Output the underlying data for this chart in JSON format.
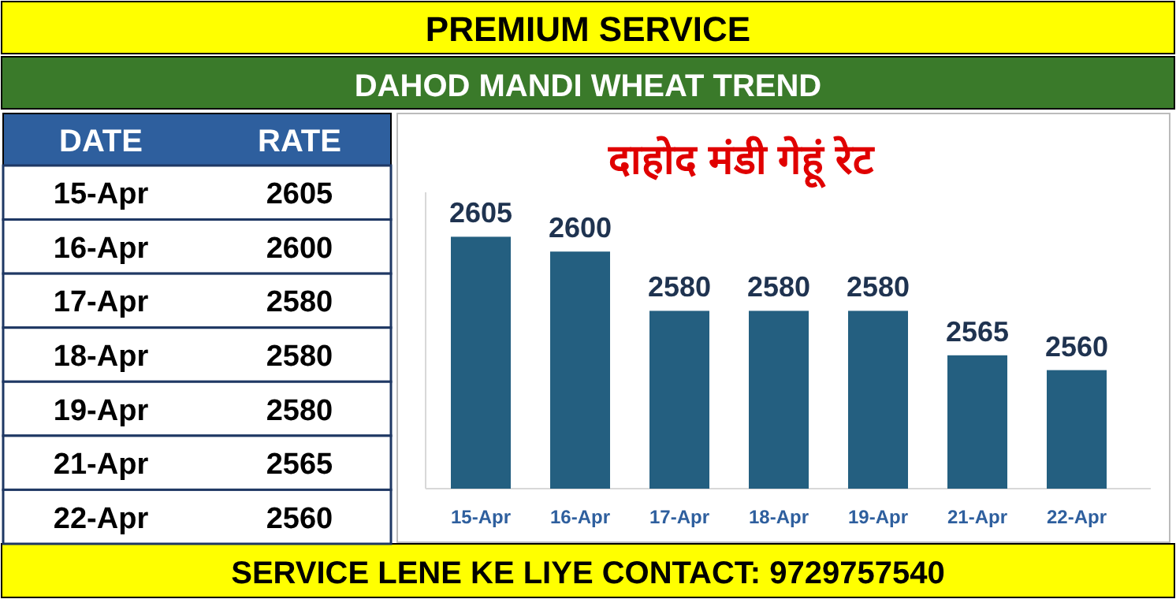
{
  "chart_data": [
    {
      "type": "other",
      "title": "PREMIUM SERVICE",
      "subtitle": "DAHOD MANDI WHEAT TREND",
      "xlabel": "DATE",
      "ylabel": "RATE",
      "categories": [
        "15-Apr",
        "16-Apr",
        "17-Apr",
        "18-Apr",
        "19-Apr",
        "21-Apr",
        "22-Apr"
      ],
      "values": [
        2605,
        2600,
        2580,
        2580,
        2580,
        2565,
        2560
      ],
      "data_labels": true,
      "annotations": [
        "SERVICE LENE KE LIYE CONTACT: 9729757540"
      ]
    },
    {
      "type": "bar",
      "title": "दाहोद मंडी गेहूं रेट",
      "categories": [
        "15-Apr",
        "16-Apr",
        "17-Apr",
        "18-Apr",
        "19-Apr",
        "21-Apr",
        "22-Apr"
      ],
      "values": [
        2605,
        2600,
        2580,
        2580,
        2580,
        2565,
        2560
      ],
      "color": "#245f80",
      "ylim": [
        2520,
        2620
      ],
      "data_labels": true
    }
  ]
}
